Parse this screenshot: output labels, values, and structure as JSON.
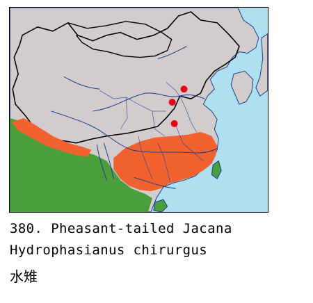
{
  "species": {
    "number": "380.",
    "common_name": "Pheasant-tailed Jacana",
    "scientific_name": "Hydrophasianus chirurgus",
    "chinese_name": "水雉"
  },
  "legend_colors": {
    "sea": "#aee0f0",
    "land_china": "#d2cccc",
    "neighbor_land": "#d2cccc",
    "other_range": "#4a9e3c",
    "breeding_range": "#f26230",
    "record_dots": "#e60012",
    "rivers_borders": "#1a3c8c"
  },
  "record_dots_count": 3
}
